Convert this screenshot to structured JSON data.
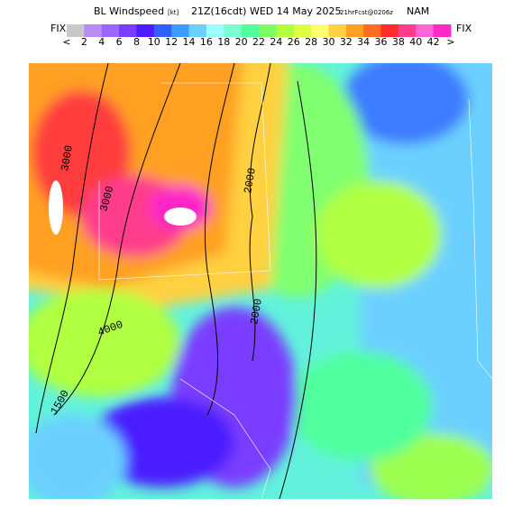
{
  "header": {
    "title_main": "BL Windspeed",
    "units": "[kt]",
    "valid": "21Z(16cdt) WED 14 May 2025",
    "forecast": "21hrFcst@0206z",
    "model": "NAM"
  },
  "colorbar": {
    "left_label": "FIX",
    "right_label": "FIX",
    "labels": [
      "<",
      2,
      4,
      6,
      8,
      10,
      12,
      14,
      16,
      18,
      20,
      22,
      24,
      26,
      28,
      30,
      32,
      34,
      36,
      38,
      40,
      42,
      ">"
    ],
    "colors": [
      "#c8c8c8",
      "#b88cf4",
      "#9a66ff",
      "#7a3cff",
      "#4c1cff",
      "#3060ff",
      "#3c9cff",
      "#6cd0ff",
      "#9cffff",
      "#7cffd0",
      "#50ff9c",
      "#7cff64",
      "#b0ff40",
      "#dcff40",
      "#ffff70",
      "#ffd040",
      "#ffa020",
      "#ff6c20",
      "#ff2c2c",
      "#ff3c8c",
      "#ff64d8",
      "#ff28c8"
    ]
  },
  "map": {
    "contour_labels": [
      "2000",
      "3000",
      "4000",
      "1500",
      "2000",
      "3000"
    ]
  }
}
